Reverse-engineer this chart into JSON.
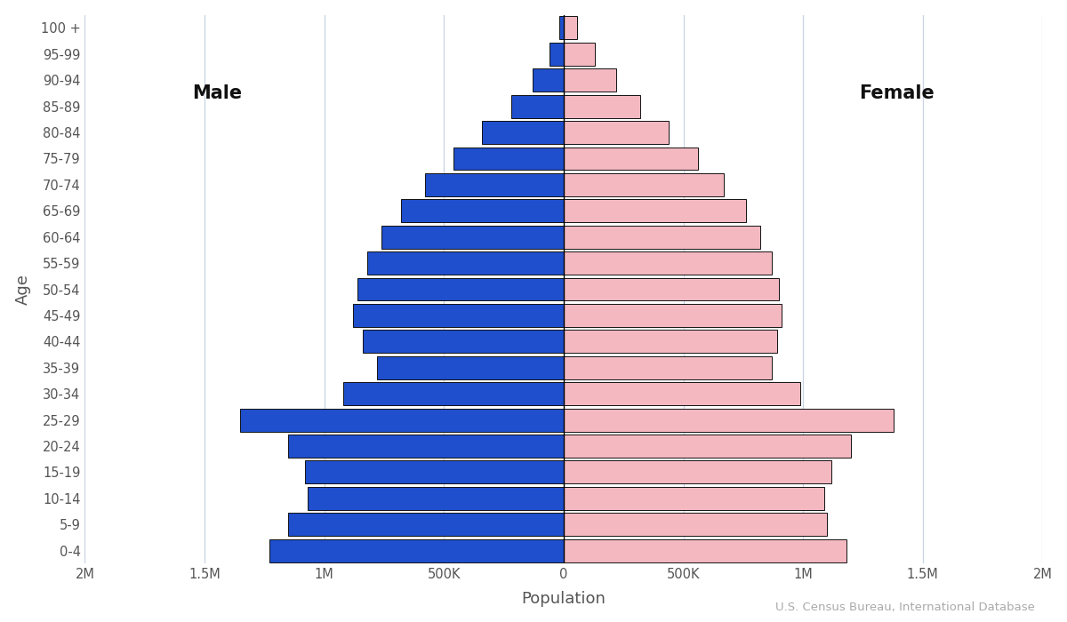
{
  "age_groups": [
    "0-4",
    "5-9",
    "10-14",
    "15-19",
    "20-24",
    "25-29",
    "30-34",
    "35-39",
    "40-44",
    "45-49",
    "50-54",
    "55-59",
    "60-64",
    "65-69",
    "70-74",
    "75-79",
    "80-84",
    "85-89",
    "90-94",
    "95-99",
    "100 +"
  ],
  "male": [
    1230000,
    1150000,
    1070000,
    1080000,
    1150000,
    1350000,
    920000,
    780000,
    840000,
    880000,
    860000,
    820000,
    760000,
    680000,
    580000,
    460000,
    340000,
    220000,
    130000,
    60000,
    20000
  ],
  "female": [
    1180000,
    1100000,
    1090000,
    1120000,
    1200000,
    1380000,
    990000,
    870000,
    890000,
    910000,
    900000,
    870000,
    820000,
    760000,
    670000,
    560000,
    440000,
    320000,
    220000,
    130000,
    55000
  ],
  "male_color": "#1f4fcc",
  "female_color": "#f4b8c1",
  "male_label": "Male",
  "female_label": "Female",
  "xlabel": "Population",
  "ylabel": "Age",
  "xlim": 2000000,
  "tick_positions": [
    -2000000,
    -1500000,
    -1000000,
    -500000,
    0,
    500000,
    1000000,
    1500000,
    2000000
  ],
  "tick_labels": [
    "2M",
    "1.5M",
    "1M",
    "500K",
    "0",
    "500K",
    "1M",
    "1.5M",
    "2M"
  ],
  "source_text": "U.S. Census Bureau, International Database",
  "background_color": "#ffffff",
  "edgecolor": "#111111",
  "gridcolor": "#c8d4e4",
  "bar_height": 0.88
}
